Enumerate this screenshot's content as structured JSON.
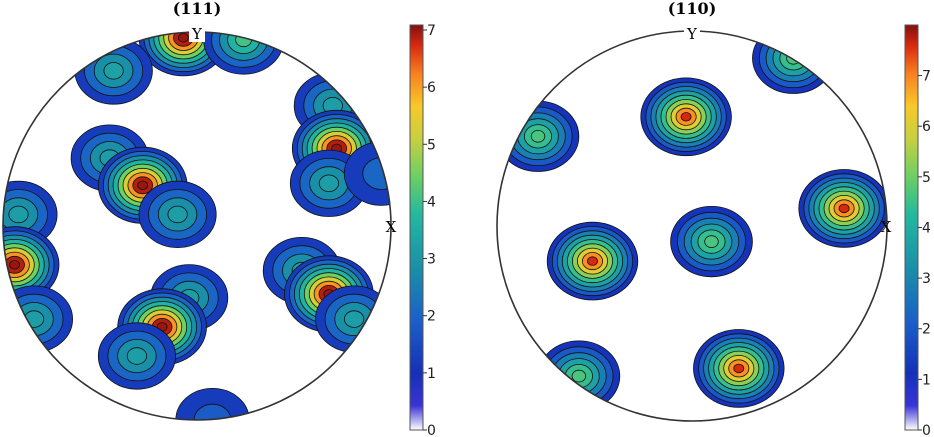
{
  "chart_data": [
    {
      "type": "heatmap",
      "subtype": "pole-figure",
      "title": "(111)",
      "axis_labels": {
        "y": "Y",
        "x": "X"
      },
      "colorbar": {
        "min": 0,
        "max": 7,
        "ticks": [
          "0",
          "1",
          "2",
          "3",
          "4",
          "5",
          "6",
          "7"
        ]
      },
      "peaks": [
        {
          "x": -0.07,
          "y": 0.97,
          "value": 6.9
        },
        {
          "x": 0.24,
          "y": 0.96,
          "value": 4.0
        },
        {
          "x": -0.43,
          "y": 0.8,
          "value": 3.2
        },
        {
          "x": 0.7,
          "y": 0.62,
          "value": 3.1
        },
        {
          "x": 0.72,
          "y": 0.4,
          "value": 6.9
        },
        {
          "x": 0.68,
          "y": 0.22,
          "value": 3.1
        },
        {
          "x": -0.45,
          "y": 0.35,
          "value": 3.1
        },
        {
          "x": -0.28,
          "y": 0.21,
          "value": 6.9
        },
        {
          "x": -0.1,
          "y": 0.06,
          "value": 3.1
        },
        {
          "x": -0.92,
          "y": 0.06,
          "value": 3.1
        },
        {
          "x": -0.94,
          "y": -0.2,
          "value": 6.9
        },
        {
          "x": -0.84,
          "y": -0.48,
          "value": 3.1
        },
        {
          "x": 0.54,
          "y": -0.23,
          "value": 3.1
        },
        {
          "x": 0.68,
          "y": -0.35,
          "value": 6.9
        },
        {
          "x": 0.81,
          "y": -0.48,
          "value": 3.1
        },
        {
          "x": -0.04,
          "y": -0.37,
          "value": 3.1
        },
        {
          "x": -0.18,
          "y": -0.52,
          "value": 6.9
        },
        {
          "x": -0.31,
          "y": -0.67,
          "value": 3.1
        },
        {
          "x": 0.95,
          "y": 0.27,
          "value": 2.0
        },
        {
          "x": 0.08,
          "y": -1.0,
          "value": 1.8
        }
      ]
    },
    {
      "type": "heatmap",
      "subtype": "pole-figure",
      "title": "(110)",
      "axis_labels": {
        "y": "Y",
        "x": "X"
      },
      "colorbar": {
        "min": 0,
        "max": 7.9,
        "ticks": [
          "0",
          "1",
          "2",
          "3",
          "4",
          "5",
          "6",
          "7"
        ]
      },
      "peaks": [
        {
          "x": -0.03,
          "y": 0.56,
          "value": 7.5
        },
        {
          "x": 0.78,
          "y": 0.09,
          "value": 7.5
        },
        {
          "x": -0.51,
          "y": -0.18,
          "value": 7.5
        },
        {
          "x": 0.24,
          "y": -0.73,
          "value": 7.5
        },
        {
          "x": 0.1,
          "y": -0.08,
          "value": 4.6
        },
        {
          "x": -0.79,
          "y": 0.46,
          "value": 4.6
        },
        {
          "x": 0.52,
          "y": 0.86,
          "value": 4.6
        },
        {
          "x": -0.58,
          "y": -0.77,
          "value": 4.6
        }
      ]
    }
  ]
}
